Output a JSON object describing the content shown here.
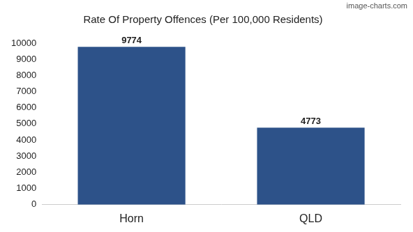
{
  "chart_data": {
    "type": "bar",
    "title": "Rate Of Property Offences (Per 100,000 Residents)",
    "categories": [
      "Horn",
      "QLD"
    ],
    "values": [
      9774,
      4773
    ],
    "color": "#2d5289",
    "ylim": [
      0,
      10000
    ],
    "yticks": [
      0,
      1000,
      2000,
      3000,
      4000,
      5000,
      6000,
      7000,
      8000,
      9000,
      10000
    ],
    "grid": false,
    "data_labels": true,
    "annotations": [
      "image-charts.com"
    ]
  }
}
